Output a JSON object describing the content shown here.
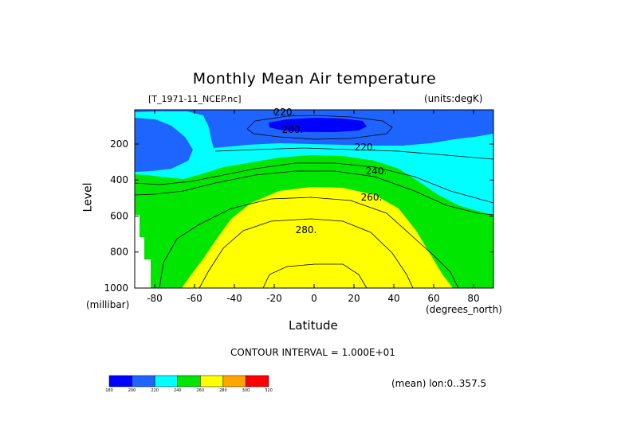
{
  "chart_data": {
    "type": "heatmap",
    "subtype": "filled-contour",
    "title": "Monthly Mean Air temperature",
    "file_label": "[T_1971-11_NCEP.nc]",
    "units_label": "(units:degK)",
    "xlabel": "Latitude",
    "x_units": "(degrees_north)",
    "ylabel": "Level",
    "y_units": "(millibar)",
    "xlim": [
      -90,
      90
    ],
    "ylim": [
      1000,
      10
    ],
    "y_inverted": true,
    "x_ticks": [
      "-80",
      "-60",
      "-40",
      "-20",
      "0",
      "20",
      "40",
      "60",
      "80"
    ],
    "x_tick_values": [
      -80,
      -60,
      -40,
      -20,
      0,
      20,
      40,
      60,
      80
    ],
    "y_ticks": [
      "200",
      "400",
      "600",
      "800",
      "1000"
    ],
    "y_tick_values": [
      200,
      400,
      600,
      800,
      1000
    ],
    "contour_interval_text": "CONTOUR INTERVAL = 1.000E+01",
    "contour_labels": [
      "220.",
      "200.",
      "220.",
      "240.",
      "260.",
      "280."
    ],
    "mean_label": "(mean) lon:0..357.5",
    "colorbar": {
      "levels": [
        "180",
        "200",
        "220",
        "240",
        "260",
        "280",
        "300",
        "320"
      ],
      "colors": [
        "#0000ff",
        "#1e64ff",
        "#00ffff",
        "#00e600",
        "#ffff00",
        "#ffa500",
        "#ff0000"
      ]
    },
    "zones": [
      {
        "range": "< 200",
        "color": "#0000ff"
      },
      {
        "range": "200-220",
        "color": "#1e64ff"
      },
      {
        "range": "220-240",
        "color": "#00ffff"
      },
      {
        "range": "240-260",
        "color": "#00e600"
      },
      {
        "range": "260-280",
        "color": "#ffff00"
      },
      {
        "range": "280-300",
        "color": "#ffa500"
      }
    ]
  }
}
